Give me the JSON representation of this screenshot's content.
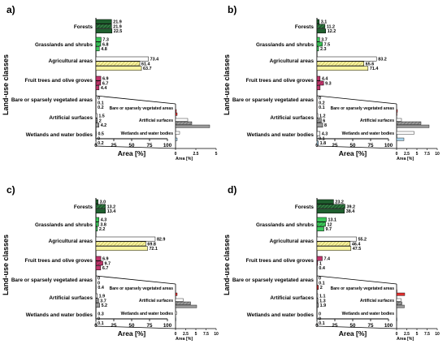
{
  "figure": {
    "y_axis_label": "Land-use classes",
    "category_labels": [
      "Forests",
      "Grasslands and shrubs",
      "Agricultural areas",
      "Fruit trees and olive groves",
      "Bare or sparsely vegetated areas",
      "Artificial surfaces",
      "Wetlands and water bodies"
    ],
    "inset_category_labels": [
      "Bare or sparsely vegetated areas",
      "Artificial surfaces",
      "Wetlands and water bodies"
    ],
    "colors": {
      "forests": "#1f5f2e",
      "grasslands": "#3cc85a",
      "agricultural": "#f8f3a0",
      "fruit": "#c2356c",
      "bare": "#e03030",
      "artificial": "#9a9a9a",
      "wetlands": "#a9d2ea"
    }
  },
  "chart_data": [
    {
      "type": "bar",
      "panel_label": "a)",
      "orientation": "horizontal",
      "xlabel": "Area [%]",
      "xlim": [
        0,
        100
      ],
      "xticks": [
        0,
        25,
        50,
        75,
        100
      ],
      "categories": [
        "Forests",
        "Grasslands and shrubs",
        "Agricultural areas",
        "Fruit trees and olive groves",
        "Bare or sparsely vegetated areas",
        "Artificial surfaces",
        "Wetlands and water bodies"
      ],
      "values": [
        [
          21.9,
          21.9,
          22.5
        ],
        [
          7.3,
          6.8,
          4.8
        ],
        [
          73.4,
          61.4,
          63.7
        ],
        [
          6.9,
          6.7,
          4.4
        ],
        [
          0,
          0.1,
          0.2
        ],
        [
          1.5,
          2,
          4.2
        ],
        [
          0.5,
          0,
          0.2
        ]
      ],
      "value_labels": [
        [
          "21.9",
          "21.9",
          "22.5"
        ],
        [
          "7.3",
          "6.8",
          "4.8"
        ],
        [
          "73.4",
          "61.4",
          "63.7"
        ],
        [
          "6.9",
          "6.7",
          "4.4"
        ],
        [
          "0",
          "0.1",
          "0.2"
        ],
        [
          "1.5",
          "2",
          "4.2"
        ],
        [
          "0.5",
          "0",
          "0.2"
        ]
      ],
      "inset": {
        "xlabel": "Area [%]",
        "xlim": [
          0,
          5
        ],
        "xticks": [
          0,
          2.5,
          5
        ],
        "tick_labels": [
          "0",
          "2.5",
          "5"
        ]
      }
    },
    {
      "type": "bar",
      "panel_label": "b)",
      "orientation": "horizontal",
      "xlabel": "Area [%]",
      "xlim": [
        0,
        100
      ],
      "xticks": [
        0,
        25,
        50,
        75,
        100
      ],
      "categories": [
        "Forests",
        "Grasslands and shrubs",
        "Agricultural areas",
        "Fruit trees and olive groves",
        "Bare or sparsely vegetated areas",
        "Artificial surfaces",
        "Wetlands and water bodies"
      ],
      "values": [
        [
          3.1,
          11.2,
          12.2
        ],
        [
          3.7,
          7.5,
          2.3
        ],
        [
          83.2,
          65.6,
          71.4
        ],
        [
          4.4,
          9.3,
          4.4
        ],
        [
          0,
          0.2,
          0.1
        ],
        [
          1.2,
          6,
          8
        ],
        [
          4.3,
          0.1,
          1.8
        ]
      ],
      "value_labels": [
        [
          "3.1",
          "11.2",
          "12.2"
        ],
        [
          "3.7",
          "7.5",
          "2.3"
        ],
        [
          "83.2",
          "65.6",
          "71.4"
        ],
        [
          "4.4",
          "9.3",
          ""
        ],
        [
          "0",
          "0.2",
          "0.1"
        ],
        [
          "1.2",
          "6",
          "8"
        ],
        [
          "4.3",
          "0.1",
          "1.8"
        ]
      ],
      "inset": {
        "xlabel": "Area [%]",
        "xlim": [
          0,
          10
        ],
        "xticks": [
          0,
          2.5,
          5,
          7.5,
          10
        ],
        "tick_labels": [
          "0",
          "2.5",
          "5",
          "7.5",
          "10"
        ]
      }
    },
    {
      "type": "bar",
      "panel_label": "c)",
      "orientation": "horizontal",
      "xlabel": "Area [%]",
      "xlim": [
        0,
        100
      ],
      "xticks": [
        0,
        25,
        50,
        75,
        100
      ],
      "categories": [
        "Forests",
        "Grasslands and shrubs",
        "Agricultural areas",
        "Fruit trees and olive groves",
        "Bare or sparsely vegetated areas",
        "Artificial surfaces",
        "Wetlands and water bodies"
      ],
      "values": [
        [
          3,
          13.2,
          13.4
        ],
        [
          4.3,
          3.8,
          2.2
        ],
        [
          82.9,
          69.8,
          72.1
        ],
        [
          6.9,
          9.7,
          6.7
        ],
        [
          0,
          0,
          0.4
        ],
        [
          1.9,
          3.7,
          5.2
        ],
        [
          0.3,
          0,
          0.1
        ]
      ],
      "value_labels": [
        [
          "3.0",
          "13.2",
          "13.4"
        ],
        [
          "4.3",
          "3.8",
          "2.2"
        ],
        [
          "82.9",
          "69.8",
          "72.1"
        ],
        [
          "6.9",
          "9.7",
          "6.7"
        ],
        [
          "0",
          "0",
          "0.4"
        ],
        [
          "1.9",
          "3.7",
          "5.2"
        ],
        [
          "0.3",
          "0",
          "0.1"
        ]
      ],
      "inset": {
        "xlabel": "Area [%]",
        "xlim": [
          0,
          10
        ],
        "xticks": [
          0,
          2.5,
          5,
          7.5,
          10
        ],
        "tick_labels": [
          "0",
          "2.5",
          "5",
          "7.5",
          "10"
        ]
      }
    },
    {
      "type": "bar",
      "panel_label": "d)",
      "orientation": "horizontal",
      "xlabel": "Area [%]",
      "xlim": [
        0,
        100
      ],
      "xticks": [
        0,
        25,
        50,
        75,
        100
      ],
      "categories": [
        "Forests",
        "Grasslands and shrubs",
        "Agricultural areas",
        "Fruit trees and olive groves",
        "Bare or sparsely vegetated areas",
        "Artificial surfaces",
        "Wetlands and water bodies"
      ],
      "values": [
        [
          23.2,
          39.2,
          38.4
        ],
        [
          13.1,
          12,
          9.7
        ],
        [
          55.2,
          46.4,
          47.5
        ],
        [
          7.4,
          1,
          0.4
        ],
        [
          0,
          0.1,
          2
        ],
        [
          1.1,
          1.3,
          1.9
        ],
        [
          0,
          0,
          0.1
        ]
      ],
      "value_labels": [
        [
          "23.2",
          "39.2",
          "38.4"
        ],
        [
          "13.1",
          "12",
          "9.7"
        ],
        [
          "55.2",
          "46.4",
          "47.5"
        ],
        [
          "7.4",
          "1",
          "0.4"
        ],
        [
          "0",
          "0.1",
          "2"
        ],
        [
          "1.1",
          "1.3",
          "1.9"
        ],
        [
          "0",
          "0",
          "0.1"
        ]
      ],
      "inset": {
        "xlabel": "Area [%]",
        "xlim": [
          0,
          10
        ],
        "xticks": [
          0,
          2.5,
          5,
          7.5,
          10
        ],
        "tick_labels": [
          "0",
          "2.5",
          "5",
          "7.5",
          "10"
        ]
      }
    }
  ]
}
